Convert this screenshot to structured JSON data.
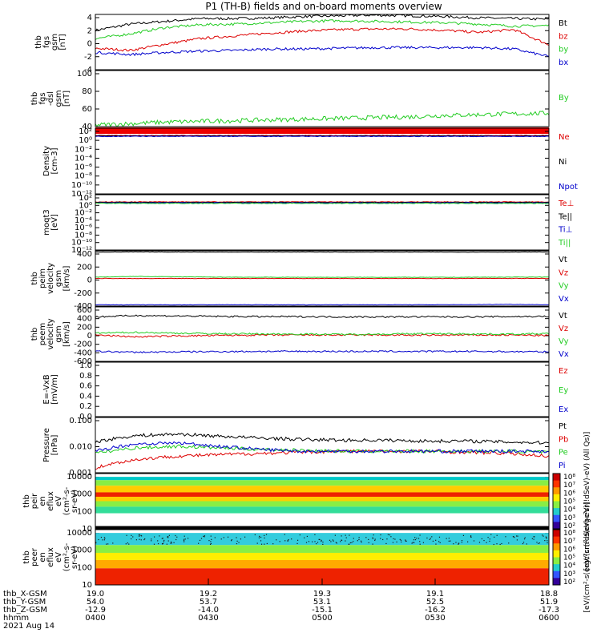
{
  "title": "P1 (TH-B) fields and on-board moments overview",
  "footer": {
    "labels": [
      "thb_X-GSM",
      "thb_Y-GSM",
      "thb_Z-GSM",
      "hhmm",
      "2021 Aug 14"
    ],
    "columns": [
      [
        "19.0",
        "54.0",
        "-12.9",
        "0400"
      ],
      [
        "19.2",
        "53.7",
        "-14.0",
        "0430"
      ],
      [
        "19.3",
        "53.1",
        "-15.1",
        "0500"
      ],
      [
        "19.1",
        "52.5",
        "-16.2",
        "0530"
      ],
      [
        "18.8",
        "51.9",
        "-17.3",
        "0600"
      ]
    ]
  },
  "chart_data": [
    {
      "type": "line",
      "ylabel": [
        "thb",
        "fgs",
        "gsm",
        "[nT]"
      ],
      "ylim": [
        -4,
        4
      ],
      "yticks": [
        "4",
        "2",
        "0",
        "-2",
        "-4"
      ],
      "series": [
        {
          "name": "Bt",
          "color": "#000000",
          "values": [
            1.7,
            2.6,
            3.0,
            3.4,
            3.4,
            3.5,
            3.7,
            3.8,
            3.9,
            3.8,
            3.7,
            3.5,
            3.4,
            3.3
          ]
        },
        {
          "name": "bz",
          "color": "#dd0000",
          "values": [
            -0.9,
            -1.2,
            -0.3,
            0.5,
            0.9,
            1.3,
            1.6,
            1.8,
            1.9,
            1.9,
            1.7,
            1.4,
            1.8,
            -0.4
          ]
        },
        {
          "name": "by",
          "color": "#22cc22",
          "values": [
            0.5,
            1.2,
            2.1,
            2.5,
            2.6,
            2.8,
            3.0,
            3.1,
            3.0,
            2.9,
            2.8,
            2.6,
            2.3,
            2.4
          ]
        },
        {
          "name": "bx",
          "color": "#0000cc",
          "values": [
            -1.5,
            -1.8,
            -1.5,
            -1.3,
            -1.2,
            -1.0,
            -1.0,
            -0.9,
            -0.8,
            -0.8,
            -0.8,
            -0.8,
            -1.0,
            -2.1
          ]
        }
      ]
    },
    {
      "type": "line",
      "ylabel": [
        "thb",
        "fgs",
        "-dsl",
        "gsm",
        "[nT]"
      ],
      "ylim": [
        25,
        100
      ],
      "yticks": [
        "100",
        "80",
        "60",
        "40"
      ],
      "series": [
        {
          "name": "By",
          "color": "#22cc22",
          "values": [
            27,
            29,
            31,
            32,
            33,
            34,
            35,
            36,
            37,
            38,
            40,
            41,
            42,
            43
          ]
        }
      ]
    },
    {
      "type": "line",
      "ylabel": [
        "Density",
        "[cm-3]"
      ],
      "yticks": [
        "10²",
        "10⁰",
        "10⁻²",
        "10⁻⁴",
        "10⁻⁶",
        "10⁻⁸",
        "10⁻¹⁰",
        "10⁻¹²"
      ],
      "series": [
        {
          "name": "Ne",
          "color": "#dd0000",
          "values": [
            1,
            1,
            1,
            1,
            1,
            1,
            1,
            1
          ]
        },
        {
          "name": "Ni",
          "color": "#000000",
          "values": [
            1,
            1,
            1,
            1,
            1,
            1,
            1,
            1
          ]
        },
        {
          "name": "Npot",
          "color": "#0000cc",
          "values": [
            1,
            1,
            1,
            1,
            1,
            1,
            1,
            1
          ]
        }
      ]
    },
    {
      "type": "line",
      "ylabel": [
        "moqt3",
        "[eV]"
      ],
      "yticks": [
        "10²",
        "10⁰",
        "10⁻²",
        "10⁻⁴",
        "10⁻⁶",
        "10⁻⁸",
        "10⁻¹⁰",
        "10⁻¹²"
      ],
      "series": [
        {
          "name": "Te⊥",
          "color": "#dd0000",
          "values": [
            1,
            1,
            1,
            1,
            1,
            1,
            1,
            1
          ]
        },
        {
          "name": "Te||",
          "color": "#000000",
          "values": [
            1,
            1,
            1,
            1,
            1,
            1,
            1,
            1
          ]
        },
        {
          "name": "Ti⊥",
          "color": "#0000cc",
          "values": [
            1,
            1,
            1,
            1,
            1,
            1,
            1,
            1
          ]
        },
        {
          "name": "Ti||",
          "color": "#22cc22",
          "values": [
            1,
            1,
            1,
            1,
            1,
            1,
            1,
            1
          ]
        }
      ]
    },
    {
      "type": "line",
      "ylabel": [
        "thb",
        "peim",
        "velocity",
        "gsm",
        "[km/s]"
      ],
      "ylim": [
        -420,
        420
      ],
      "yticks": [
        "400",
        "200",
        "0",
        "-200",
        "-400"
      ],
      "series": [
        {
          "name": "Vt",
          "color": "#000000",
          "values": [
            400,
            402,
            401,
            400,
            400,
            401,
            400,
            400,
            400,
            399,
            400,
            401
          ]
        },
        {
          "name": "Vz",
          "color": "#dd0000",
          "values": [
            0,
            -2,
            -1,
            0,
            0,
            -1,
            0,
            0,
            -1,
            0,
            0,
            0
          ]
        },
        {
          "name": "Vy",
          "color": "#22cc22",
          "values": [
            20,
            30,
            25,
            20,
            18,
            18,
            17,
            18,
            17,
            18,
            20,
            22
          ]
        },
        {
          "name": "Vx",
          "color": "#0000cc",
          "values": [
            -400,
            -401,
            -401,
            -400,
            -400,
            -401,
            -400,
            -400,
            -400,
            -399,
            -393,
            -400
          ]
        }
      ]
    },
    {
      "type": "line",
      "ylabel": [
        "thb",
        "peem",
        "velocity",
        "gsm",
        "[km/s]"
      ],
      "ylim": [
        -600,
        600
      ],
      "yticks": [
        "600",
        "400",
        "200",
        "0",
        "-200",
        "-400",
        "-600"
      ],
      "series": [
        {
          "name": "Vt",
          "color": "#000000",
          "values": [
            380,
            410,
            400,
            390,
            385,
            385,
            380,
            380,
            382,
            380,
            385,
            390
          ]
        },
        {
          "name": "Vz",
          "color": "#dd0000",
          "values": [
            -20,
            -60,
            -40,
            -30,
            -20,
            -20,
            -20,
            -20,
            -25,
            -20,
            -20,
            -30
          ]
        },
        {
          "name": "Vy",
          "color": "#22cc22",
          "values": [
            20,
            40,
            20,
            10,
            5,
            0,
            -5,
            0,
            10,
            5,
            0,
            10
          ]
        },
        {
          "name": "Vx",
          "color": "#0000cc",
          "values": [
            -380,
            -400,
            -390,
            -385,
            -380,
            -380,
            -380,
            -380,
            -382,
            -380,
            -385,
            -390
          ]
        }
      ]
    },
    {
      "type": "line",
      "ylabel": [
        "E=-VxB",
        "[mV/m]"
      ],
      "ylim": [
        0,
        1
      ],
      "yticks": [
        "1.0",
        "0.8",
        "0.6",
        "0.4",
        "0.2",
        "0.0"
      ],
      "series": [
        {
          "name": "Ez",
          "color": "#dd0000",
          "values": []
        },
        {
          "name": "Ey",
          "color": "#22cc22",
          "values": []
        },
        {
          "name": "Ex",
          "color": "#0000cc",
          "values": []
        }
      ]
    },
    {
      "type": "line",
      "ylabel": [
        "Pressure",
        "[nPa]"
      ],
      "log": true,
      "ylim": [
        0.001,
        0.1
      ],
      "yticks": [
        "0.100",
        "0.010",
        "0.001"
      ],
      "series": [
        {
          "name": "Pt",
          "color": "#000000",
          "values": [
            0.013,
            0.022,
            0.025,
            0.021,
            0.018,
            0.016,
            0.015,
            0.015,
            0.014,
            0.014,
            0.013,
            0.012
          ]
        },
        {
          "name": "Pb",
          "color": "#dd0000",
          "values": [
            0.0015,
            0.003,
            0.004,
            0.0045,
            0.005,
            0.0055,
            0.006,
            0.006,
            0.006,
            0.0055,
            0.005,
            0.004
          ]
        },
        {
          "name": "Pe",
          "color": "#22cc22",
          "values": [
            0.005,
            0.008,
            0.009,
            0.008,
            0.007,
            0.0065,
            0.006,
            0.006,
            0.006,
            0.006,
            0.006,
            0.0055
          ]
        },
        {
          "name": "Pi",
          "color": "#0000cc",
          "values": [
            0.006,
            0.011,
            0.012,
            0.009,
            0.007,
            0.006,
            0.006,
            0.006,
            0.006,
            0.006,
            0.006,
            0.006
          ]
        }
      ]
    },
    {
      "type": "heatmap",
      "ylabel": [
        "thb",
        "peir",
        "en",
        "eflux",
        "eV",
        "(cm²-s-",
        "sr-eV)"
      ],
      "yticks": [
        "10000",
        "1000",
        "100",
        "10"
      ],
      "colorbar_label": "[eV/(cm²-s(ergc²sr(!dSeV)-eV) (All Qs)]",
      "colorbar_ticks": [
        "10⁸",
        "10⁷",
        "10⁶",
        "10⁵",
        "10⁴",
        "10³",
        "10²"
      ]
    },
    {
      "type": "heatmap",
      "ylabel": [
        "thb",
        "peer",
        "en",
        "eflux",
        "eV",
        "(cm²-s-",
        "sr-eV)"
      ],
      "yticks": [
        "10000",
        "1000",
        "100",
        "10"
      ],
      "colorbar_label": "[eV/(cm²-s(ergc²sr(!dSeV)-eV)]",
      "colorbar_ticks": [
        "10⁸",
        "10⁷",
        "10⁶",
        "10⁵",
        "10⁴",
        "10³",
        "10²"
      ]
    }
  ]
}
